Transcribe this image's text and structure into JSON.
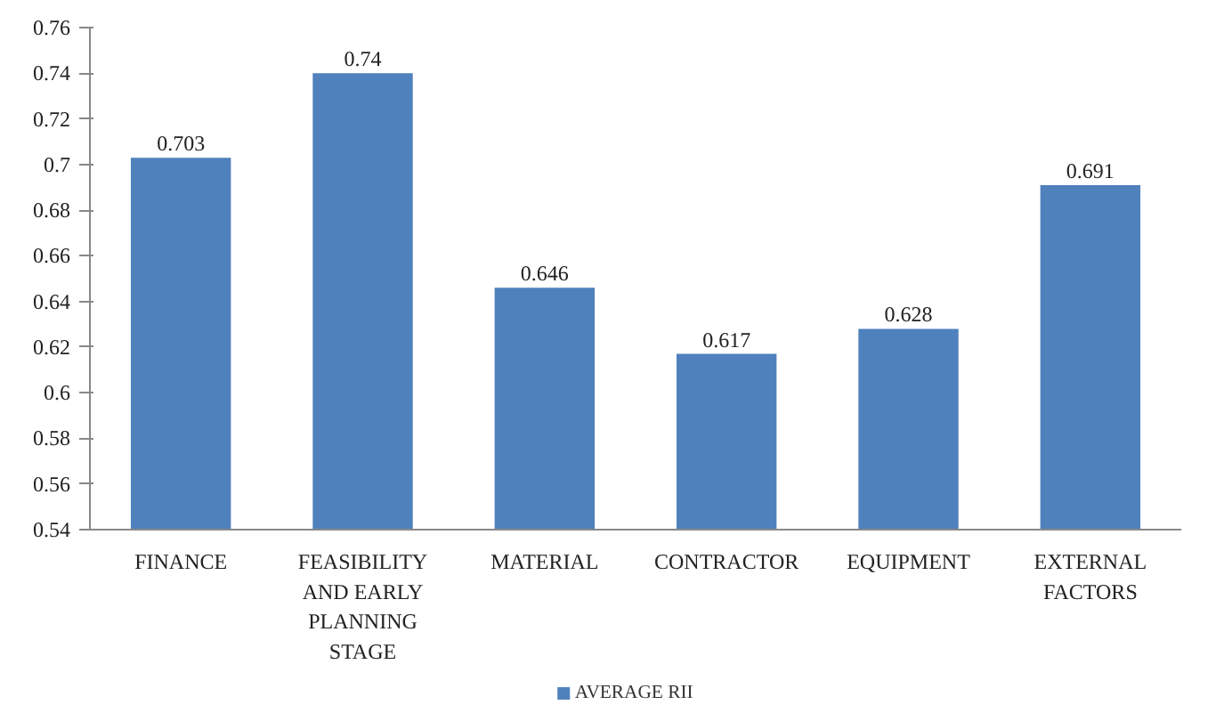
{
  "chart_data": {
    "type": "bar",
    "categories": [
      "FINANCE",
      "FEASIBILITY AND EARLY PLANNING STAGE",
      "MATERIAL",
      "CONTRACTOR",
      "EQUIPMENT",
      "EXTERNAL FACTORS"
    ],
    "series": [
      {
        "name": "AVERAGE RII",
        "color": "#4f81bd",
        "values": [
          0.703,
          0.74,
          0.646,
          0.617,
          0.628,
          0.691
        ]
      }
    ],
    "ylim": [
      0.54,
      0.76
    ],
    "yticks": [
      0.54,
      0.56,
      0.58,
      0.6,
      0.62,
      0.64,
      0.66,
      0.68,
      0.7,
      0.72,
      0.74,
      0.76
    ],
    "data_labels": true,
    "grid": false,
    "legend": "bottom"
  }
}
